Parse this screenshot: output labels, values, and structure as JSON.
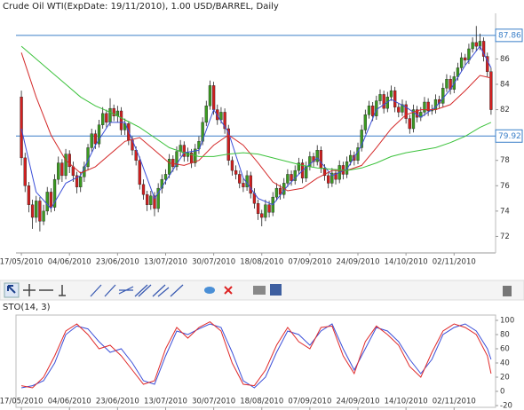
{
  "chart_data": [
    {
      "type": "candlestick",
      "title": "Crude Oil WTI(ExpDate: 19/11/2010), 1.00 USD/BARREL, Daily",
      "up_color": "#3b9a21",
      "down_color": "#d11f1f",
      "xlim": [
        -0.5,
        127.5
      ],
      "ylim": [
        70.7,
        89.6
      ],
      "yticks": [
        72,
        74,
        76,
        78,
        80,
        82,
        84,
        86
      ],
      "xticks": [
        {
          "value": 0,
          "label": "17/05/2010"
        },
        {
          "value": 13,
          "label": "04/06/2010"
        },
        {
          "value": 26,
          "label": "23/06/2010"
        },
        {
          "value": 39,
          "label": "13/07/2010"
        },
        {
          "value": 52,
          "label": "30/07/2010"
        },
        {
          "value": 65,
          "label": "18/08/2010"
        },
        {
          "value": 78,
          "label": "07/09/2010"
        },
        {
          "value": 91,
          "label": "24/09/2010"
        },
        {
          "value": 104,
          "label": "14/10/2010"
        },
        {
          "value": 117,
          "label": "02/11/2010"
        }
      ],
      "levels": [
        87.86,
        79.92
      ],
      "level_color": "#3a7fc8",
      "ohlc": [
        [
          83.0,
          83.5,
          77.6,
          78.2
        ],
        [
          78.2,
          78.6,
          75.5,
          76.0
        ],
        [
          76.0,
          76.3,
          73.9,
          74.5
        ],
        [
          74.5,
          74.9,
          72.6,
          73.5
        ],
        [
          73.5,
          75.2,
          73.1,
          74.8
        ],
        [
          74.8,
          75.1,
          72.4,
          73.2
        ],
        [
          73.2,
          74.5,
          72.9,
          74.0
        ],
        [
          74.0,
          75.9,
          73.7,
          75.5
        ],
        [
          75.5,
          75.8,
          73.9,
          74.3
        ],
        [
          74.3,
          76.9,
          74.0,
          76.5
        ],
        [
          76.5,
          78.3,
          76.1,
          77.8
        ],
        [
          77.8,
          78.1,
          76.3,
          76.8
        ],
        [
          76.8,
          78.9,
          76.5,
          78.5
        ],
        [
          78.5,
          78.8,
          77.0,
          77.5
        ],
        [
          77.5,
          77.9,
          76.3,
          76.8
        ],
        [
          76.8,
          77.1,
          75.4,
          75.9
        ],
        [
          75.9,
          77.1,
          75.5,
          76.7
        ],
        [
          76.7,
          77.9,
          76.3,
          77.5
        ],
        [
          77.5,
          79.3,
          77.2,
          79.0
        ],
        [
          79.0,
          80.5,
          78.7,
          80.1
        ],
        [
          80.1,
          80.4,
          78.9,
          79.3
        ],
        [
          79.3,
          81.2,
          79.0,
          80.8
        ],
        [
          80.8,
          82.2,
          80.5,
          81.7
        ],
        [
          81.7,
          82.0,
          80.6,
          81.0
        ],
        [
          81.0,
          82.9,
          80.7,
          82.1
        ],
        [
          82.1,
          82.4,
          81.1,
          81.5
        ],
        [
          81.5,
          82.3,
          81.0,
          81.9
        ],
        [
          81.9,
          82.2,
          80.0,
          80.4
        ],
        [
          80.4,
          81.3,
          80.0,
          80.9
        ],
        [
          80.9,
          81.1,
          79.2,
          79.6
        ],
        [
          79.6,
          79.9,
          78.4,
          78.8
        ],
        [
          78.8,
          79.1,
          77.6,
          78.0
        ],
        [
          78.0,
          78.3,
          75.7,
          76.1
        ],
        [
          76.1,
          76.5,
          74.9,
          75.3
        ],
        [
          75.3,
          75.6,
          74.0,
          74.5
        ],
        [
          74.5,
          75.6,
          74.1,
          75.2
        ],
        [
          75.2,
          75.5,
          73.6,
          74.2
        ],
        [
          74.2,
          76.2,
          73.9,
          75.8
        ],
        [
          75.8,
          76.9,
          75.4,
          76.5
        ],
        [
          76.5,
          77.3,
          76.1,
          76.9
        ],
        [
          76.9,
          78.5,
          76.6,
          78.1
        ],
        [
          78.1,
          78.4,
          77.1,
          77.5
        ],
        [
          77.5,
          79.1,
          77.2,
          78.7
        ],
        [
          78.7,
          79.6,
          78.3,
          79.2
        ],
        [
          79.2,
          79.5,
          77.9,
          78.3
        ],
        [
          78.3,
          79.0,
          77.9,
          78.6
        ],
        [
          78.6,
          78.9,
          77.4,
          77.8
        ],
        [
          77.8,
          79.3,
          77.5,
          78.9
        ],
        [
          78.9,
          79.9,
          78.5,
          79.5
        ],
        [
          79.5,
          81.4,
          79.2,
          81.0
        ],
        [
          81.0,
          82.7,
          80.7,
          82.3
        ],
        [
          82.3,
          84.3,
          82.0,
          83.9
        ],
        [
          83.9,
          84.2,
          81.6,
          82.0
        ],
        [
          82.0,
          82.4,
          80.8,
          81.2
        ],
        [
          81.2,
          82.2,
          80.9,
          81.8
        ],
        [
          81.8,
          82.1,
          80.1,
          80.5
        ],
        [
          80.5,
          80.8,
          77.6,
          78.0
        ],
        [
          78.0,
          78.3,
          76.8,
          77.2
        ],
        [
          77.2,
          77.6,
          76.5,
          76.9
        ],
        [
          76.9,
          77.2,
          75.8,
          76.2
        ],
        [
          76.2,
          76.6,
          75.5,
          75.9
        ],
        [
          75.9,
          77.2,
          75.6,
          76.8
        ],
        [
          76.8,
          77.1,
          75.0,
          75.4
        ],
        [
          75.4,
          75.8,
          74.2,
          74.6
        ],
        [
          74.6,
          74.9,
          73.3,
          73.8
        ],
        [
          73.8,
          74.1,
          72.8,
          73.5
        ],
        [
          73.5,
          74.9,
          73.2,
          74.5
        ],
        [
          74.5,
          74.8,
          73.5,
          73.9
        ],
        [
          73.9,
          75.5,
          73.6,
          75.1
        ],
        [
          75.1,
          76.2,
          74.8,
          75.8
        ],
        [
          75.8,
          76.1,
          74.9,
          75.3
        ],
        [
          75.3,
          76.6,
          75.0,
          76.2
        ],
        [
          76.2,
          77.3,
          75.9,
          76.9
        ],
        [
          76.9,
          77.2,
          76.0,
          76.4
        ],
        [
          76.4,
          77.6,
          76.1,
          77.2
        ],
        [
          77.2,
          78.2,
          76.9,
          77.8
        ],
        [
          77.8,
          78.1,
          76.2,
          76.6
        ],
        [
          76.6,
          77.9,
          76.3,
          77.5
        ],
        [
          77.5,
          78.7,
          77.2,
          78.3
        ],
        [
          78.3,
          78.6,
          77.5,
          77.9
        ],
        [
          77.9,
          79.2,
          77.6,
          78.8
        ],
        [
          78.8,
          79.1,
          77.0,
          77.4
        ],
        [
          77.4,
          77.7,
          76.4,
          76.8
        ],
        [
          76.8,
          77.1,
          75.8,
          76.2
        ],
        [
          76.2,
          77.4,
          75.9,
          77.0
        ],
        [
          77.0,
          77.3,
          76.1,
          76.5
        ],
        [
          76.5,
          78.0,
          76.2,
          77.6
        ],
        [
          77.6,
          77.9,
          76.5,
          76.9
        ],
        [
          76.9,
          78.3,
          76.6,
          77.9
        ],
        [
          77.9,
          78.8,
          77.6,
          78.4
        ],
        [
          78.4,
          78.7,
          77.6,
          78.0
        ],
        [
          78.0,
          79.4,
          77.7,
          79.0
        ],
        [
          79.0,
          80.8,
          78.7,
          80.4
        ],
        [
          80.4,
          82.0,
          80.1,
          81.6
        ],
        [
          81.6,
          82.7,
          81.3,
          82.3
        ],
        [
          82.3,
          82.6,
          81.1,
          81.5
        ],
        [
          81.5,
          83.1,
          81.2,
          82.7
        ],
        [
          82.7,
          83.6,
          82.4,
          83.2
        ],
        [
          83.2,
          83.5,
          81.7,
          82.1
        ],
        [
          82.1,
          83.4,
          81.8,
          83.0
        ],
        [
          83.0,
          83.9,
          82.7,
          83.5
        ],
        [
          83.5,
          83.8,
          81.8,
          82.2
        ],
        [
          82.2,
          82.5,
          81.4,
          81.8
        ],
        [
          81.8,
          82.8,
          81.5,
          82.4
        ],
        [
          82.4,
          82.7,
          80.9,
          81.3
        ],
        [
          81.3,
          81.6,
          80.1,
          80.5
        ],
        [
          80.5,
          82.4,
          80.2,
          82.0
        ],
        [
          82.0,
          82.3,
          81.0,
          81.4
        ],
        [
          81.4,
          82.2,
          81.1,
          81.8
        ],
        [
          81.8,
          83.0,
          81.5,
          82.6
        ],
        [
          82.6,
          82.9,
          81.5,
          81.9
        ],
        [
          81.9,
          82.4,
          81.6,
          82.0
        ],
        [
          82.0,
          83.2,
          81.7,
          82.8
        ],
        [
          82.8,
          83.1,
          82.1,
          82.5
        ],
        [
          82.5,
          84.1,
          82.2,
          83.7
        ],
        [
          83.7,
          84.8,
          83.4,
          84.4
        ],
        [
          84.4,
          84.7,
          83.2,
          83.6
        ],
        [
          83.6,
          85.0,
          83.3,
          84.6
        ],
        [
          84.6,
          85.7,
          84.3,
          85.3
        ],
        [
          85.3,
          86.5,
          85.0,
          86.1
        ],
        [
          86.1,
          86.4,
          85.5,
          85.9
        ],
        [
          85.9,
          87.2,
          85.6,
          86.8
        ],
        [
          86.8,
          87.7,
          86.5,
          87.3
        ],
        [
          87.3,
          88.6,
          86.6,
          87.0
        ],
        [
          87.0,
          88.0,
          86.7,
          87.4
        ],
        [
          87.4,
          87.7,
          85.8,
          86.2
        ],
        [
          86.2,
          86.5,
          84.6,
          85.0
        ],
        [
          85.0,
          85.3,
          81.6,
          82.0
        ]
      ],
      "ma_x": [
        0,
        4,
        8,
        12,
        16,
        20,
        24,
        28,
        32,
        36,
        40,
        44,
        48,
        52,
        56,
        60,
        64,
        68,
        72,
        76,
        80,
        84,
        88,
        92,
        96,
        100,
        104,
        108,
        112,
        116,
        120,
        124,
        127
      ],
      "overlays": [
        {
          "color": "#3b4fd8",
          "values": [
            80.5,
            75.5,
            74.2,
            76.2,
            76.8,
            79.2,
            81.0,
            81.0,
            78.2,
            75.0,
            76.8,
            78.6,
            78.8,
            82.0,
            80.2,
            76.6,
            75.0,
            74.5,
            76.0,
            77.2,
            78.2,
            76.8,
            77.3,
            79.2,
            82.0,
            82.8,
            82.2,
            81.4,
            82.2,
            83.6,
            85.5,
            87.0,
            85.3
          ]
        },
        {
          "color": "#d42a2a",
          "values": [
            86.5,
            83.0,
            80.0,
            78.0,
            77.0,
            77.5,
            78.5,
            79.5,
            79.8,
            78.8,
            77.8,
            77.6,
            78.0,
            79.2,
            80.0,
            79.2,
            77.8,
            76.3,
            75.6,
            75.8,
            76.6,
            77.2,
            77.2,
            77.6,
            79.0,
            80.5,
            81.6,
            82.0,
            82.0,
            82.4,
            83.5,
            84.7,
            84.5
          ]
        },
        {
          "color": "#3cc23c",
          "values": [
            87.0,
            86.0,
            85.0,
            84.0,
            83.0,
            82.3,
            81.8,
            81.2,
            80.6,
            79.8,
            79.0,
            78.6,
            78.3,
            78.3,
            78.5,
            78.6,
            78.5,
            78.2,
            77.9,
            77.6,
            77.4,
            77.3,
            77.2,
            77.4,
            77.8,
            78.3,
            78.6,
            78.8,
            79.0,
            79.4,
            79.9,
            80.6,
            81.0
          ]
        }
      ]
    },
    {
      "type": "line",
      "title": "STO(14, 3)",
      "xlim": [
        -0.5,
        127.5
      ],
      "ylim": [
        -22.5,
        107.5
      ],
      "yticks": [
        100,
        80,
        60,
        40,
        20,
        0,
        -20
      ],
      "xticks": [
        {
          "value": 0,
          "label": "17/05/2010"
        },
        {
          "value": 13,
          "label": "04/06/2010"
        },
        {
          "value": 26,
          "label": "23/06/2010"
        },
        {
          "value": 39,
          "label": "13/07/2010"
        },
        {
          "value": 52,
          "label": "30/07/2010"
        },
        {
          "value": 65,
          "label": "18/08/2010"
        },
        {
          "value": 78,
          "label": "07/09/2010"
        },
        {
          "value": 91,
          "label": "24/09/2010"
        },
        {
          "value": 104,
          "label": "14/10/2010"
        },
        {
          "value": 117,
          "label": "02/11/2010"
        }
      ],
      "x": [
        0,
        3,
        6,
        9,
        12,
        15,
        18,
        21,
        24,
        27,
        30,
        33,
        36,
        39,
        42,
        45,
        48,
        51,
        54,
        57,
        60,
        63,
        66,
        69,
        72,
        75,
        78,
        81,
        84,
        87,
        90,
        93,
        96,
        99,
        102,
        105,
        108,
        111,
        114,
        117,
        120,
        123,
        126,
        127
      ],
      "series": [
        {
          "color": "#3b4fd8",
          "values": [
            5,
            8,
            15,
            40,
            80,
            92,
            88,
            70,
            55,
            60,
            40,
            15,
            10,
            50,
            85,
            80,
            88,
            95,
            90,
            55,
            15,
            5,
            20,
            55,
            85,
            80,
            65,
            85,
            95,
            60,
            30,
            60,
            90,
            85,
            70,
            45,
            25,
            45,
            80,
            90,
            95,
            85,
            60,
            45
          ]
        },
        {
          "color": "#e02a2a",
          "values": [
            8,
            5,
            20,
            50,
            85,
            95,
            80,
            60,
            65,
            50,
            30,
            10,
            15,
            60,
            90,
            75,
            90,
            98,
            85,
            40,
            10,
            8,
            30,
            65,
            90,
            70,
            60,
            90,
            92,
            50,
            25,
            70,
            92,
            80,
            65,
            35,
            20,
            55,
            85,
            95,
            90,
            80,
            50,
            25
          ]
        }
      ]
    }
  ]
}
